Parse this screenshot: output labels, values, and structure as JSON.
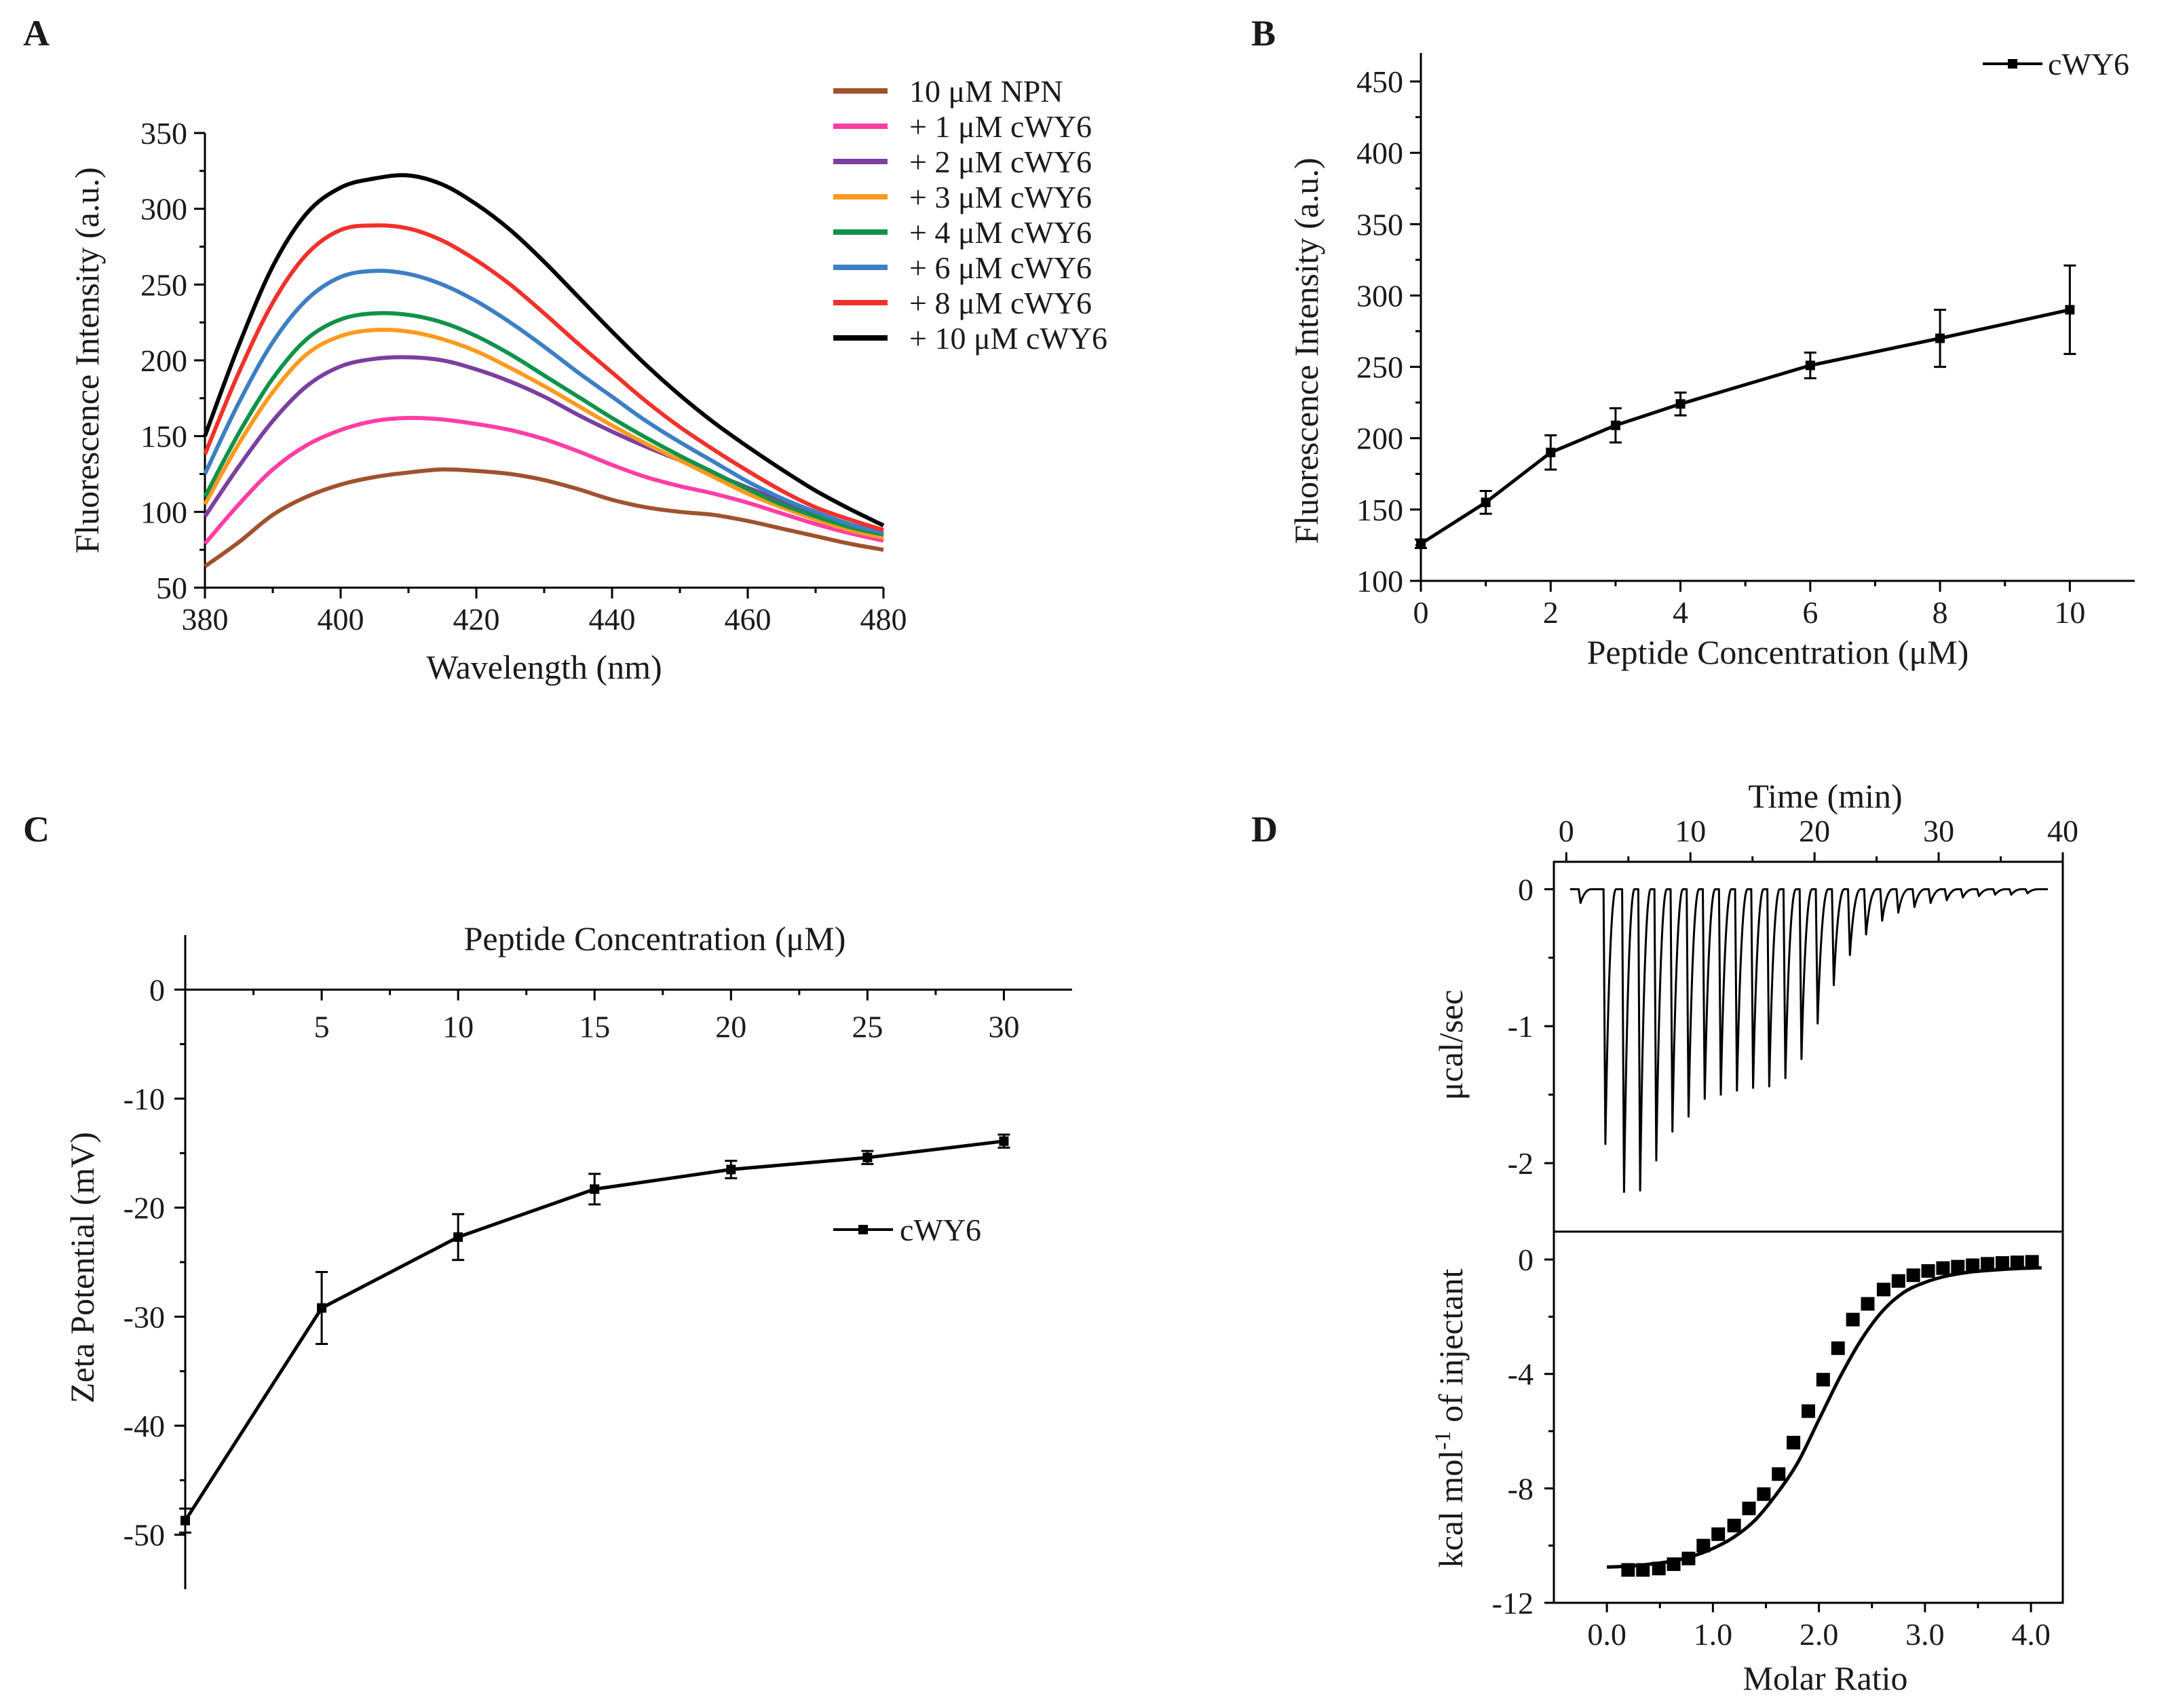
{
  "chart_data": [
    {
      "panel": "A",
      "type": "line",
      "xlabel": "Wavelength (nm)",
      "ylabel": "Fluorescence Intensity (a.u.)",
      "xlim": [
        380,
        480
      ],
      "ylim": [
        50,
        350
      ],
      "xticks": [
        380,
        400,
        420,
        440,
        460,
        480
      ],
      "yticks": [
        50,
        100,
        150,
        200,
        250,
        300,
        350
      ],
      "x": [
        380,
        385,
        390,
        395,
        400,
        405,
        410,
        415,
        420,
        425,
        430,
        435,
        440,
        445,
        450,
        455,
        460,
        465,
        470,
        475,
        480
      ],
      "legend_position": "top-right",
      "series": [
        {
          "name": "10 μM NPN",
          "color": "#a0522d",
          "values": [
            64,
            80,
            98,
            110,
            118,
            123,
            126,
            128,
            127,
            125,
            121,
            115,
            108,
            103,
            100,
            98,
            94,
            89,
            84,
            79,
            75
          ]
        },
        {
          "name": "+ 1 μM cWY6",
          "color": "#ff3ea5",
          "values": [
            79,
            105,
            128,
            144,
            154,
            160,
            162,
            161,
            158,
            154,
            148,
            140,
            131,
            123,
            117,
            112,
            106,
            99,
            92,
            86,
            81
          ]
        },
        {
          "name": "+ 2 μM cWY6",
          "color": "#7b3fa0",
          "values": [
            97,
            130,
            160,
            183,
            196,
            201,
            202,
            200,
            194,
            186,
            176,
            164,
            153,
            143,
            134,
            125,
            116,
            107,
            98,
            91,
            85
          ]
        },
        {
          "name": "+ 3 μM cWY6",
          "color": "#ff9a1f",
          "values": [
            105,
            145,
            179,
            204,
            216,
            220,
            219,
            214,
            206,
            195,
            183,
            170,
            157,
            145,
            134,
            123,
            112,
            103,
            95,
            88,
            83
          ]
        },
        {
          "name": "+ 4 μM cWY6",
          "color": "#11924a",
          "values": [
            110,
            152,
            188,
            214,
            227,
            231,
            230,
            225,
            216,
            204,
            190,
            176,
            162,
            149,
            137,
            126,
            115,
            105,
            97,
            90,
            85
          ]
        },
        {
          "name": "+ 6 μM cWY6",
          "color": "#3d7fc4",
          "values": [
            125,
            172,
            212,
            240,
            255,
            259,
            257,
            250,
            239,
            225,
            209,
            192,
            176,
            160,
            146,
            133,
            120,
            109,
            100,
            92,
            86
          ]
        },
        {
          "name": "+ 8 μM cWY6",
          "color": "#f0312b",
          "values": [
            138,
            192,
            238,
            270,
            286,
            289,
            287,
            279,
            266,
            250,
            231,
            211,
            192,
            173,
            156,
            141,
            127,
            114,
            103,
            95,
            88
          ]
        },
        {
          "name": "+ 10 μM cWY6",
          "color": "#000000",
          "values": [
            150,
            210,
            262,
            297,
            314,
            320,
            322,
            316,
            303,
            286,
            265,
            242,
            219,
            197,
            177,
            159,
            143,
            128,
            114,
            102,
            91
          ]
        }
      ]
    },
    {
      "panel": "B",
      "type": "line",
      "xlabel": "Peptide Concentration (μM)",
      "ylabel": "Fluorescence Intensity (a.u.)",
      "xlim": [
        0,
        11
      ],
      "ylim": [
        100,
        470
      ],
      "xticks": [
        0,
        2,
        4,
        6,
        8,
        10
      ],
      "yticks": [
        100,
        150,
        200,
        250,
        300,
        350,
        400,
        450
      ],
      "legend_position": "top-right",
      "series": [
        {
          "name": "cWY6",
          "color": "#000000",
          "x": [
            0,
            1,
            2,
            3,
            4,
            6,
            8,
            10
          ],
          "values": [
            126,
            155,
            190,
            209,
            224,
            251,
            270,
            290
          ],
          "errors": [
            3,
            8,
            12,
            12,
            8,
            9,
            20,
            31
          ]
        }
      ]
    },
    {
      "panel": "C",
      "type": "line",
      "xlabel": "Peptide Concentration (μM)",
      "ylabel": "Zeta Potential (mV)",
      "xlim": [
        0,
        32.5
      ],
      "ylim": [
        -55,
        5
      ],
      "xticks": [
        5,
        10,
        15,
        20,
        25,
        30
      ],
      "yticks": [
        0,
        -10,
        -20,
        -30,
        -40,
        -50
      ],
      "x_axis_position": "top (at y = 0)",
      "legend_position": "center-right",
      "series": [
        {
          "name": "cWY6",
          "color": "#000000",
          "x": [
            0,
            5,
            10,
            15,
            20,
            25,
            30
          ],
          "values": [
            -48.7,
            -29.2,
            -22.7,
            -18.3,
            -16.5,
            -15.4,
            -13.9
          ],
          "errors": [
            1.1,
            3.3,
            2.1,
            1.4,
            0.8,
            0.6,
            0.6
          ]
        }
      ]
    },
    {
      "panel": "D",
      "type": "line",
      "subtype": "isothermal titration calorimetry",
      "top": {
        "xlabel": "Time (min)",
        "ylabel": "μcal/sec",
        "xlim": [
          -1,
          40
        ],
        "ylim": [
          -2.5,
          0.2
        ],
        "xticks": [
          0,
          10,
          20,
          30,
          40
        ],
        "yticks": [
          0,
          -1,
          -2
        ],
        "injection_times_min": [
          1,
          3,
          4.5,
          5.8,
          7.1,
          8.4,
          9.7,
          11,
          12.3,
          13.6,
          14.9,
          16.2,
          17.5,
          18.8,
          20.1,
          21.4,
          22.7,
          24,
          25.3,
          26.6,
          27.9,
          29.2,
          30.5,
          31.8,
          33.1,
          34.4,
          35.7,
          37
        ],
        "peak_heights": [
          -0.1,
          -1.86,
          -2.21,
          -2.2,
          -1.98,
          -1.77,
          -1.66,
          -1.53,
          -1.5,
          -1.47,
          -1.45,
          -1.44,
          -1.38,
          -1.24,
          -0.98,
          -0.7,
          -0.48,
          -0.33,
          -0.23,
          -0.17,
          -0.13,
          -0.1,
          -0.08,
          -0.06,
          -0.05,
          -0.04,
          -0.04,
          -0.03
        ]
      },
      "bottom": {
        "xlabel": "Molar Ratio",
        "ylabel_main": "kcal mol",
        "ylabel_sup": "-1",
        "ylabel_tail": " of injectant",
        "xlim": [
          -0.5,
          4.3
        ],
        "ylim": [
          -12,
          0.5
        ],
        "xticks": [
          "0.0",
          "1.0",
          "2.0",
          "3.0",
          "4.0"
        ],
        "yticks": [
          0,
          -4,
          -8,
          -12
        ],
        "points_x": [
          0.2,
          0.34,
          0.49,
          0.63,
          0.77,
          0.91,
          1.05,
          1.2,
          1.34,
          1.48,
          1.62,
          1.76,
          1.9,
          2.04,
          2.18,
          2.32,
          2.46,
          2.61,
          2.75,
          2.89,
          3.03,
          3.17,
          3.31,
          3.45,
          3.59,
          3.73,
          3.87,
          4.01
        ],
        "points_y": [
          -10.85,
          -10.85,
          -10.8,
          -10.65,
          -10.45,
          -10.0,
          -9.6,
          -9.3,
          -8.7,
          -8.2,
          -7.5,
          -6.4,
          -5.3,
          -4.2,
          -3.1,
          -2.1,
          -1.55,
          -1.05,
          -0.75,
          -0.55,
          -0.4,
          -0.3,
          -0.25,
          -0.2,
          -0.15,
          -0.12,
          -0.1,
          -0.08
        ],
        "fit_x": [
          0,
          0.2,
          0.4,
          0.6,
          0.8,
          1.0,
          1.2,
          1.4,
          1.6,
          1.8,
          2.0,
          2.2,
          2.4,
          2.6,
          2.8,
          3.0,
          3.2,
          3.4,
          3.6,
          3.8,
          4.0,
          4.1
        ],
        "fit_y": [
          -10.75,
          -10.72,
          -10.65,
          -10.55,
          -10.38,
          -10.1,
          -9.7,
          -9.1,
          -8.2,
          -7.1,
          -5.6,
          -4.1,
          -2.8,
          -1.8,
          -1.15,
          -0.8,
          -0.58,
          -0.45,
          -0.38,
          -0.33,
          -0.3,
          -0.29
        ]
      }
    }
  ]
}
